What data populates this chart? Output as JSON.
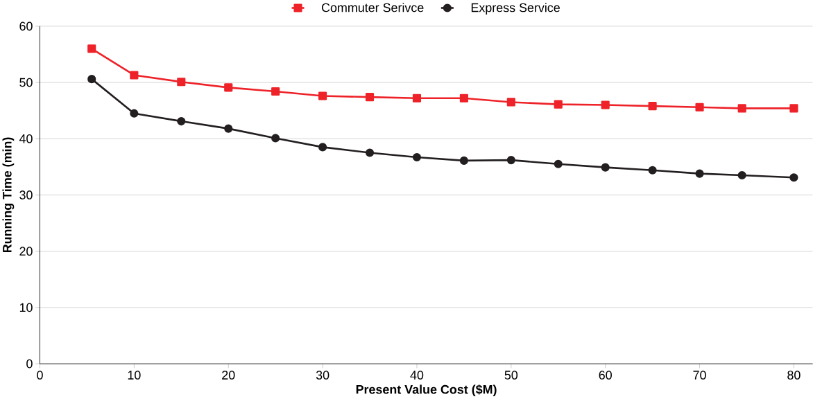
{
  "chart_data": {
    "type": "line",
    "xlabel": "Present Value Cost ($M)",
    "ylabel": "Running Time (min)",
    "xlim": [
      0,
      82
    ],
    "ylim": [
      0,
      60
    ],
    "xticks": [
      0,
      10,
      20,
      30,
      40,
      50,
      60,
      70,
      80
    ],
    "yticks": [
      0,
      10,
      20,
      30,
      40,
      50,
      60
    ],
    "grid": "y",
    "legend": "top",
    "line_style": "solid",
    "series": [
      {
        "name": "Commuter Serivce",
        "color": "#ee2229",
        "marker": "square",
        "x": [
          5.5,
          10,
          15,
          20,
          25,
          30,
          35,
          40,
          45,
          50,
          55,
          60,
          65,
          70,
          74.5,
          80
        ],
        "values": [
          56.0,
          51.3,
          50.1,
          49.1,
          48.4,
          47.6,
          47.4,
          47.2,
          47.2,
          46.5,
          46.1,
          46.0,
          45.8,
          45.6,
          45.4,
          45.4
        ]
      },
      {
        "name": "Express Service",
        "color": "#231f20",
        "marker": "circle",
        "x": [
          5.5,
          10,
          15,
          20,
          25,
          30,
          35,
          40,
          45,
          50,
          55,
          60,
          65,
          70,
          74.5,
          80
        ],
        "values": [
          50.6,
          44.5,
          43.1,
          41.8,
          40.1,
          38.5,
          37.5,
          36.7,
          36.1,
          36.2,
          35.5,
          34.9,
          34.4,
          33.8,
          33.5,
          33.1
        ]
      }
    ]
  }
}
